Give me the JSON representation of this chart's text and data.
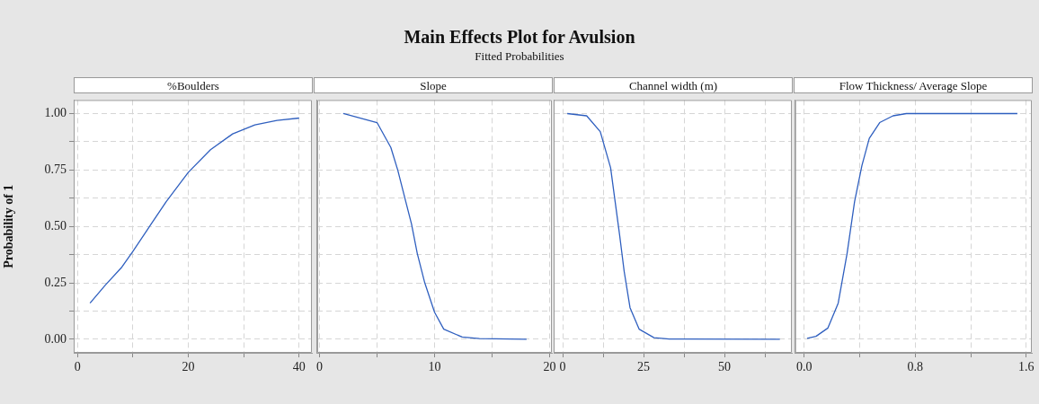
{
  "chart_data": [
    {
      "type": "other",
      "title": "Main Effects Plot for Avulsion",
      "subtitle": "Fitted Probabilities"
    },
    {
      "type": "line",
      "title": "%Boulders",
      "ylabel": "Probability of 1",
      "color": "#2f5fbf",
      "marker": "none",
      "grid": true,
      "x": [
        2.25,
        5,
        8,
        10,
        13,
        16,
        20,
        24,
        28,
        32,
        36,
        40
      ],
      "values": [
        0.16,
        0.24,
        0.32,
        0.39,
        0.5,
        0.61,
        0.74,
        0.84,
        0.91,
        0.95,
        0.97,
        0.98
      ],
      "xlim": [
        -0.7,
        42.3
      ],
      "xticks": [
        0,
        {
          "value": 10,
          "label": null
        },
        20,
        {
          "value": 30,
          "label": null
        },
        40
      ],
      "ylim": [
        -0.06,
        1.06
      ],
      "yticks": [
        {
          "value": 0,
          "label": "0.00"
        },
        {
          "value": 0.125,
          "label": null
        },
        {
          "value": 0.25,
          "label": "0.25"
        },
        {
          "value": 0.375,
          "label": null
        },
        {
          "value": 0.5,
          "label": "0.50"
        },
        {
          "value": 0.625,
          "label": null
        },
        {
          "value": 0.75,
          "label": "0.75"
        },
        {
          "value": 0.875,
          "label": null
        },
        {
          "value": 1,
          "label": "1.00"
        }
      ]
    },
    {
      "type": "line",
      "title": "Slope",
      "color": "#2f5fbf",
      "marker": "none",
      "grid": true,
      "tick_labels": "x",
      "x": [
        2.06,
        5.0,
        6.2,
        6.8,
        7.5,
        8.0,
        8.5,
        9.15,
        10,
        10.8,
        12.4,
        13.9,
        18.0
      ],
      "values": [
        1.0,
        0.96,
        0.85,
        0.75,
        0.61,
        0.51,
        0.38,
        0.25,
        0.12,
        0.045,
        0.01,
        0.003,
        0.0
      ],
      "xlim": [
        -0.2,
        20.2
      ],
      "xticks": [
        0,
        {
          "value": 5,
          "label": null
        },
        10,
        {
          "value": 15,
          "label": null
        },
        20
      ],
      "ylim": [
        -0.06,
        1.06
      ],
      "yticks": [
        {
          "value": 0,
          "label": null
        },
        {
          "value": 0.125,
          "label": null
        },
        {
          "value": 0.25,
          "label": null
        },
        {
          "value": 0.375,
          "label": null
        },
        {
          "value": 0.5,
          "label": null
        },
        {
          "value": 0.625,
          "label": null
        },
        {
          "value": 0.75,
          "label": null
        },
        {
          "value": 0.875,
          "label": null
        },
        {
          "value": 1,
          "label": null
        }
      ]
    },
    {
      "type": "line",
      "title": "Channel width (m)",
      "color": "#2f5fbf",
      "marker": "none",
      "grid": true,
      "tick_labels": "x",
      "x": [
        1.4,
        7.4,
        11.6,
        14.8,
        16.2,
        17.6,
        19.0,
        20.8,
        23.6,
        28.2,
        32.9,
        67.1
      ],
      "values": [
        1.0,
        0.99,
        0.92,
        0.76,
        0.61,
        0.46,
        0.3,
        0.14,
        0.045,
        0.007,
        0.001,
        0.0
      ],
      "xlim": [
        -2.8,
        70.8
      ],
      "xticks": [
        0,
        {
          "value": 12.5,
          "label": null
        },
        25,
        {
          "value": 37.5,
          "label": null
        },
        50,
        {
          "value": 62.5,
          "label": null
        }
      ],
      "ylim": [
        -0.06,
        1.06
      ],
      "yticks": [
        {
          "value": 0,
          "label": null
        },
        {
          "value": 0.125,
          "label": null
        },
        {
          "value": 0.25,
          "label": null
        },
        {
          "value": 0.375,
          "label": null
        },
        {
          "value": 0.5,
          "label": null
        },
        {
          "value": 0.625,
          "label": null
        },
        {
          "value": 0.75,
          "label": null
        },
        {
          "value": 0.875,
          "label": null
        },
        {
          "value": 1,
          "label": null
        }
      ]
    },
    {
      "type": "line",
      "title": "Flow Thickness/ Average Slope",
      "color": "#2f5fbf",
      "marker": "none",
      "grid": true,
      "tick_labels": "x",
      "x": [
        0.021,
        0.085,
        0.171,
        0.245,
        0.309,
        0.363,
        0.416,
        0.469,
        0.544,
        0.64,
        0.736,
        1.536
      ],
      "values": [
        0.004,
        0.013,
        0.05,
        0.16,
        0.38,
        0.61,
        0.77,
        0.89,
        0.96,
        0.99,
        1.0,
        1.0
      ],
      "xlim": [
        -0.065,
        1.64
      ],
      "xticks": [
        {
          "value": 0,
          "label": "0.0"
        },
        {
          "value": 0.4,
          "label": null
        },
        {
          "value": 0.8,
          "label": "0.8"
        },
        {
          "value": 1.2,
          "label": null
        },
        {
          "value": 1.6,
          "label": "1.6"
        }
      ],
      "ylim": [
        -0.06,
        1.06
      ],
      "yticks": [
        {
          "value": 0,
          "label": null
        },
        {
          "value": 0.125,
          "label": null
        },
        {
          "value": 0.25,
          "label": null
        },
        {
          "value": 0.375,
          "label": null
        },
        {
          "value": 0.5,
          "label": null
        },
        {
          "value": 0.625,
          "label": null
        },
        {
          "value": 0.75,
          "label": null
        },
        {
          "value": 0.875,
          "label": null
        },
        {
          "value": 1,
          "label": null
        }
      ]
    }
  ]
}
